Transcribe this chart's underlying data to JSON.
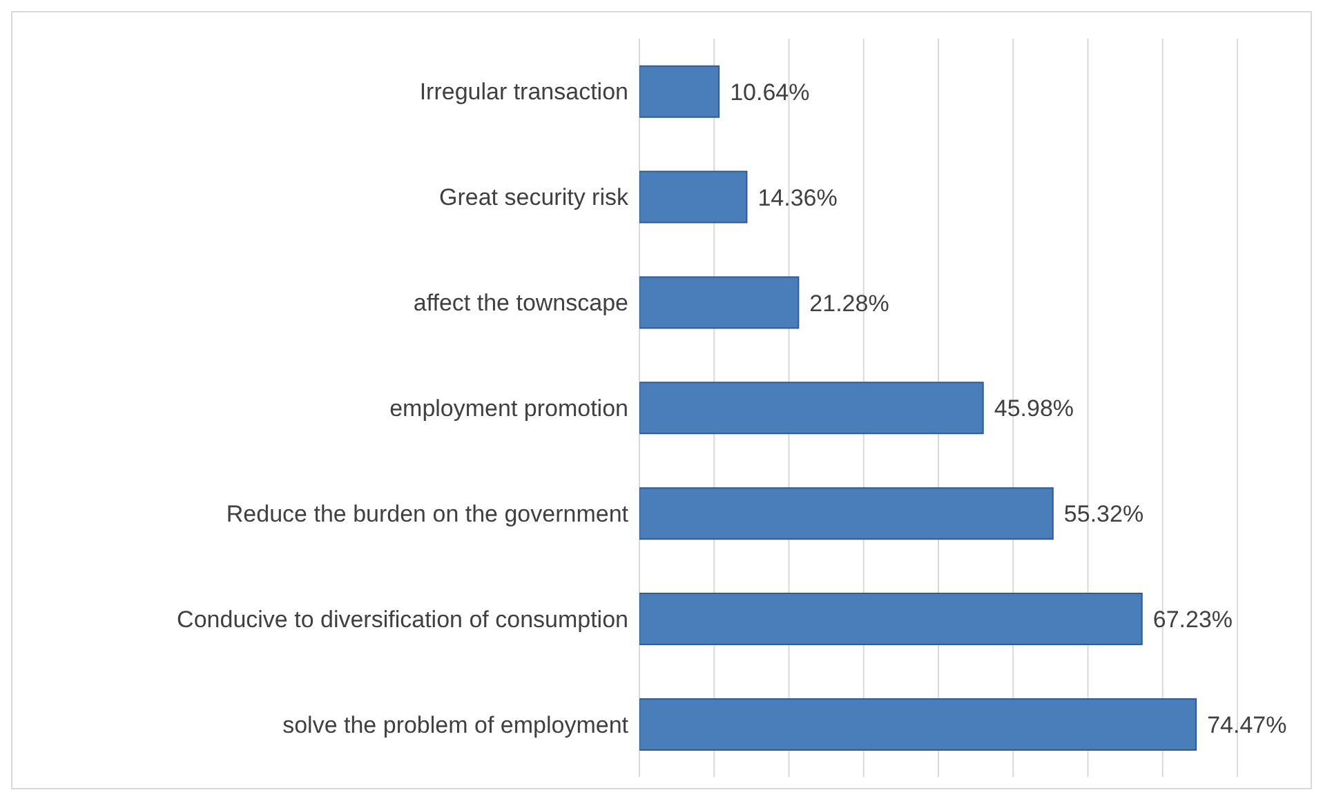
{
  "chart_data": {
    "type": "bar",
    "orientation": "horizontal",
    "categories": [
      "Irregular transaction",
      "Great security risk",
      "affect the townscape",
      "employment promotion",
      "Reduce the burden on the government",
      "Conducive to diversification of consumption",
      "solve the problem of employment"
    ],
    "values": [
      10.64,
      14.36,
      21.28,
      45.98,
      55.32,
      67.23,
      74.47
    ],
    "value_labels": [
      "10.64%",
      "14.36%",
      "21.28%",
      "45.98%",
      "55.32%",
      "67.23%",
      "74.47%"
    ],
    "color": "#4a7ebb",
    "xlim": [
      0,
      80
    ],
    "tick_labels": "y",
    "grid": "x"
  }
}
